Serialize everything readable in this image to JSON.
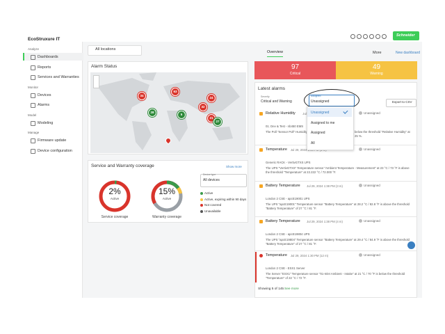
{
  "sidebar": {
    "brand": "EcoStruxure IT",
    "sections": [
      {
        "heading": "Analyze",
        "items": [
          "Dashboards",
          "Reports",
          "Services and Warranties"
        ]
      },
      {
        "heading": "Monitor",
        "items": [
          "Devices",
          "Alarms"
        ]
      },
      {
        "heading": "Model",
        "items": [
          "Modeling"
        ]
      },
      {
        "heading": "Manage",
        "items": [
          "Firmware update",
          "Device configuration"
        ]
      }
    ]
  },
  "header": {
    "location": "All locations",
    "brand": "Schneider",
    "tab": "Overview",
    "more": "More",
    "new_dashboard": "New dashboard"
  },
  "alarm_status": {
    "title": "Alarm Status",
    "pins": [
      "34",
      "63",
      "24",
      "28",
      "5",
      "32",
      "21",
      "27"
    ]
  },
  "coverage": {
    "title": "Service and Warranty coverage",
    "show_more": "Show more",
    "device_type_label": "Device type",
    "device_type": "All devices",
    "donuts": [
      {
        "value": 2,
        "value_label": "2%",
        "status": "Active",
        "caption": "Service coverage"
      },
      {
        "value": 15,
        "value_label": "15%",
        "status": "Active",
        "caption": "Warranty coverage"
      }
    ],
    "legend": [
      "Active",
      "Active, expiring within 90 days",
      "Not covered",
      "Unavailable"
    ]
  },
  "summary": [
    {
      "count": 97,
      "label": "Critical"
    },
    {
      "count": 49,
      "label": "Warning"
    }
  ],
  "latest_alarms": {
    "title": "Latest alarms",
    "severity_label": "Severity",
    "severity": "Critical and Warning",
    "assigned_label": "Assigned",
    "assigned": "Unassigned",
    "export": "Export to CSV",
    "menu": [
      "Unassigned",
      "Assigned to me",
      "Assigned",
      "All"
    ],
    "alarms": [
      {
        "name": "Relative Humidity",
        "time": "Jul 29,",
        "status": "Unassigned",
        "device": "01. Dev & Test - nb450 EMS",
        "message": "The Poll \"Sensor Poll\" Humidity",
        "message_end": "below the threshold \"Relative Humidity\" at 25 %."
      },
      {
        "name": "Temperature",
        "time": "Jul 29, 2024 1:40 PM (1 m)",
        "status": "Unassigned",
        "device": "Generic RACK - VertivGTXS UPS",
        "message": "The UPS \"VertivGTXS\" Temperature sensor \"Ambient Temperature - Measurement\" at 23 °C / 73 °F is above the threshold \"Temperature\" at 22.222 °C / 72.000 °F."
      },
      {
        "name": "Battery Temperature",
        "time": "Jul 29, 2024 1:38 PM (3 m)",
        "status": "Unassigned",
        "device": "London 2 CSE - apcE19001 UPS",
        "message": "The UPS \"apcE19001\" Temperature sensor \"Battery Temperature\" at 28.2 °C / 82.8 °F is above the threshold \"Battery Temperature\" of 27 °C / 81 °F."
      },
      {
        "name": "Battery Temperature",
        "time": "Jul 29, 2024 1:38 PM (4 m)",
        "status": "Unassigned",
        "device": "London 2 CSE - apcE19804 UPS",
        "message": "The UPS \"apcE19804\" Temperature sensor \"Battery Temperature\" at 29.4 °C / 84.9 °F is above the threshold \"Battery Temperature\" of 27 °C / 81 °F."
      },
      {
        "name": "Temperature",
        "time": "Jul 29, 2024 1:30 PM (12 m)",
        "status": "Unassigned",
        "device": "London 2 CSE - ESX1 Server",
        "message": "The Server \"ESX1\" Temperature sensor \"01-Inlet Ambient - Intake\" at 21 °C / 70 °F is below the threshold \"Temperature\" of 22 °C / 72 °F."
      }
    ],
    "showing": "Showing 5 of 145",
    "see_more": "See more"
  }
}
